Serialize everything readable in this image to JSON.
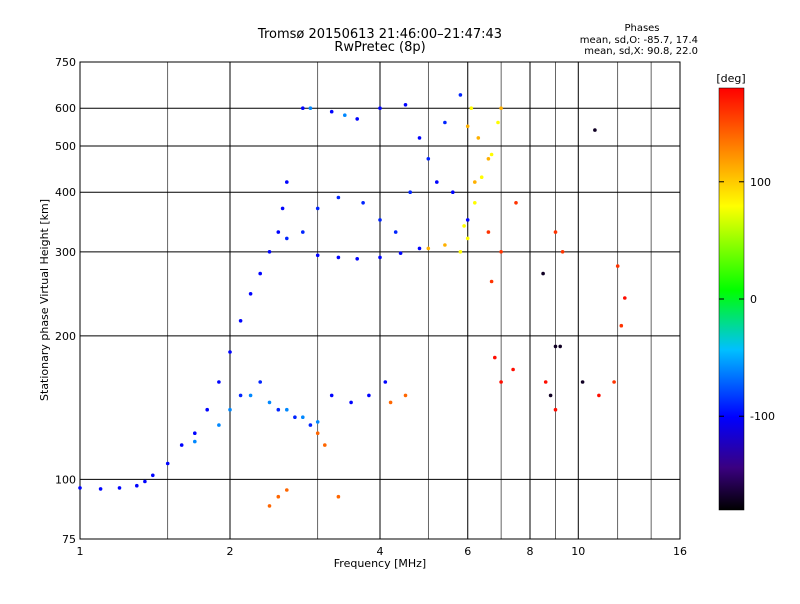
{
  "chart_data": {
    "type": "scatter",
    "title": "Tromsø 20150613 21:46:00–21:47:43",
    "subtitle": "RwPretec (8p)",
    "xlabel": "Frequency [MHz]",
    "ylabel": "Stationary phase Virtual Height [km]",
    "x_scale": "log",
    "y_scale": "log",
    "xlim": [
      1,
      16
    ],
    "ylim": [
      75,
      750
    ],
    "x_ticks": [
      1,
      2,
      4,
      6,
      8,
      10,
      16
    ],
    "x_tick_labels": [
      "1",
      "2",
      "4",
      "6",
      "8",
      "10",
      "16"
    ],
    "x_minor_ticks": [
      1.5,
      3,
      5,
      7,
      9,
      12,
      14
    ],
    "y_ticks": [
      75,
      100,
      200,
      300,
      400,
      500,
      600,
      750
    ],
    "y_tick_labels": [
      "75",
      "100",
      "200",
      "300",
      "400",
      "500",
      "600",
      "750"
    ],
    "grid": true,
    "info_box": {
      "heading": "Phases",
      "line1": "mean, sd,O: -85.7, 17.4",
      "line2": "mean, sd,X:  90.8, 22.0"
    },
    "colorbar": {
      "label": "[deg]",
      "range": [
        -180,
        180
      ],
      "ticks": [
        100,
        0,
        -100
      ],
      "tick_labels": [
        "100",
        "0",
        "-100"
      ]
    },
    "series": [
      {
        "phase": -100,
        "points": [
          [
            1.0,
            96
          ],
          [
            1.1,
            95.5
          ],
          [
            1.2,
            96
          ],
          [
            1.3,
            97
          ],
          [
            1.35,
            99
          ],
          [
            1.4,
            102
          ],
          [
            1.5,
            108
          ],
          [
            1.6,
            118
          ],
          [
            1.7,
            125
          ],
          [
            1.8,
            140
          ],
          [
            1.9,
            160
          ],
          [
            2.0,
            185
          ],
          [
            2.1,
            215
          ],
          [
            2.2,
            245
          ],
          [
            2.3,
            270
          ],
          [
            2.4,
            300
          ],
          [
            2.5,
            330
          ],
          [
            2.55,
            370
          ],
          [
            2.6,
            420
          ],
          [
            2.8,
            600
          ],
          [
            3.2,
            590
          ],
          [
            3.6,
            570
          ],
          [
            4.0,
            600
          ],
          [
            4.5,
            610
          ],
          [
            4.8,
            520
          ],
          [
            5.2,
            420
          ],
          [
            5.6,
            400
          ],
          [
            6.0,
            350
          ],
          [
            3.0,
            295
          ],
          [
            3.3,
            292
          ],
          [
            3.6,
            290
          ],
          [
            4.0,
            292
          ],
          [
            4.4,
            298
          ],
          [
            4.8,
            305
          ],
          [
            3.2,
            150
          ],
          [
            3.5,
            145
          ],
          [
            3.8,
            150
          ],
          [
            4.1,
            160
          ]
        ]
      },
      {
        "phase": -90,
        "points": [
          [
            2.6,
            320
          ],
          [
            2.8,
            330
          ],
          [
            3.0,
            370
          ],
          [
            3.3,
            390
          ],
          [
            3.7,
            380
          ],
          [
            4.0,
            350
          ],
          [
            4.3,
            330
          ],
          [
            4.6,
            400
          ],
          [
            5.0,
            470
          ],
          [
            5.4,
            560
          ],
          [
            5.8,
            640
          ],
          [
            2.1,
            150
          ],
          [
            2.3,
            160
          ],
          [
            2.5,
            140
          ],
          [
            2.7,
            135
          ],
          [
            2.9,
            130
          ]
        ]
      },
      {
        "phase": -60,
        "points": [
          [
            1.7,
            120
          ],
          [
            1.9,
            130
          ],
          [
            2.0,
            140
          ],
          [
            2.2,
            150
          ],
          [
            2.4,
            145
          ],
          [
            2.6,
            140
          ],
          [
            2.8,
            135
          ],
          [
            3.0,
            132
          ],
          [
            2.9,
            600
          ],
          [
            3.4,
            580
          ]
        ]
      },
      {
        "phase": 80,
        "points": [
          [
            5.8,
            300
          ],
          [
            6.0,
            320
          ],
          [
            6.2,
            380
          ],
          [
            6.4,
            430
          ],
          [
            6.7,
            480
          ],
          [
            6.9,
            560
          ],
          [
            6.1,
            600
          ],
          [
            5.9,
            340
          ]
        ]
      },
      {
        "phase": 110,
        "points": [
          [
            6.0,
            550
          ],
          [
            6.3,
            520
          ],
          [
            6.6,
            470
          ],
          [
            7.0,
            600
          ],
          [
            6.2,
            420
          ],
          [
            5.4,
            310
          ],
          [
            5.0,
            305
          ]
        ]
      },
      {
        "phase": 140,
        "points": [
          [
            3.0,
            125
          ],
          [
            3.1,
            118
          ],
          [
            2.4,
            88
          ],
          [
            2.5,
            92
          ],
          [
            2.6,
            95
          ],
          [
            3.3,
            92
          ],
          [
            4.2,
            145
          ],
          [
            4.5,
            150
          ]
        ]
      },
      {
        "phase": 160,
        "points": [
          [
            6.6,
            330
          ],
          [
            7.0,
            300
          ],
          [
            7.5,
            380
          ],
          [
            9.0,
            330
          ],
          [
            9.3,
            300
          ],
          [
            12.0,
            280
          ],
          [
            12.2,
            210
          ],
          [
            11.8,
            160
          ],
          [
            6.7,
            260
          ]
        ]
      },
      {
        "phase": 175,
        "points": [
          [
            6.8,
            180
          ],
          [
            7.4,
            170
          ],
          [
            8.6,
            160
          ],
          [
            9.0,
            140
          ],
          [
            11.0,
            150
          ],
          [
            12.4,
            240
          ],
          [
            7.0,
            160
          ]
        ]
      },
      {
        "phase": -170,
        "points": [
          [
            8.5,
            270
          ],
          [
            9.0,
            190
          ],
          [
            10.8,
            540
          ],
          [
            10.2,
            160
          ],
          [
            9.2,
            190
          ],
          [
            8.8,
            150
          ]
        ]
      }
    ]
  }
}
